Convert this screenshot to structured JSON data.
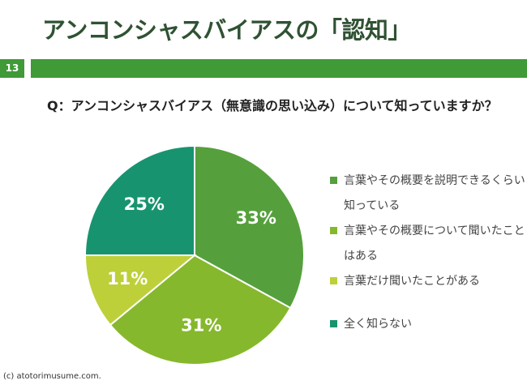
{
  "slide": {
    "title": "アンコンシャスバイアスの「認知」",
    "page_number": "13",
    "question": "Q：アンコンシャスバイアス（無意識の思い込み）について知っていますか？",
    "copyright": "(c) atotorimusume.com."
  },
  "chart_data": {
    "type": "pie",
    "start_angle_deg": 0,
    "direction": "clockwise",
    "slices": [
      {
        "label": "言葉やその概要を説明できるくらい知っている",
        "value": 33,
        "display": "33%",
        "color": "#55a03c"
      },
      {
        "label": "言葉やその概要について聞いたことはある",
        "value": 31,
        "display": "31%",
        "color": "#86b82d"
      },
      {
        "label": "言葉だけ聞いたことがある",
        "value": 11,
        "display": "11%",
        "color": "#bdd03a"
      },
      {
        "label": "全く知らない",
        "value": 25,
        "display": "25%",
        "color": "#17946f"
      }
    ],
    "legend_placement": "right"
  }
}
